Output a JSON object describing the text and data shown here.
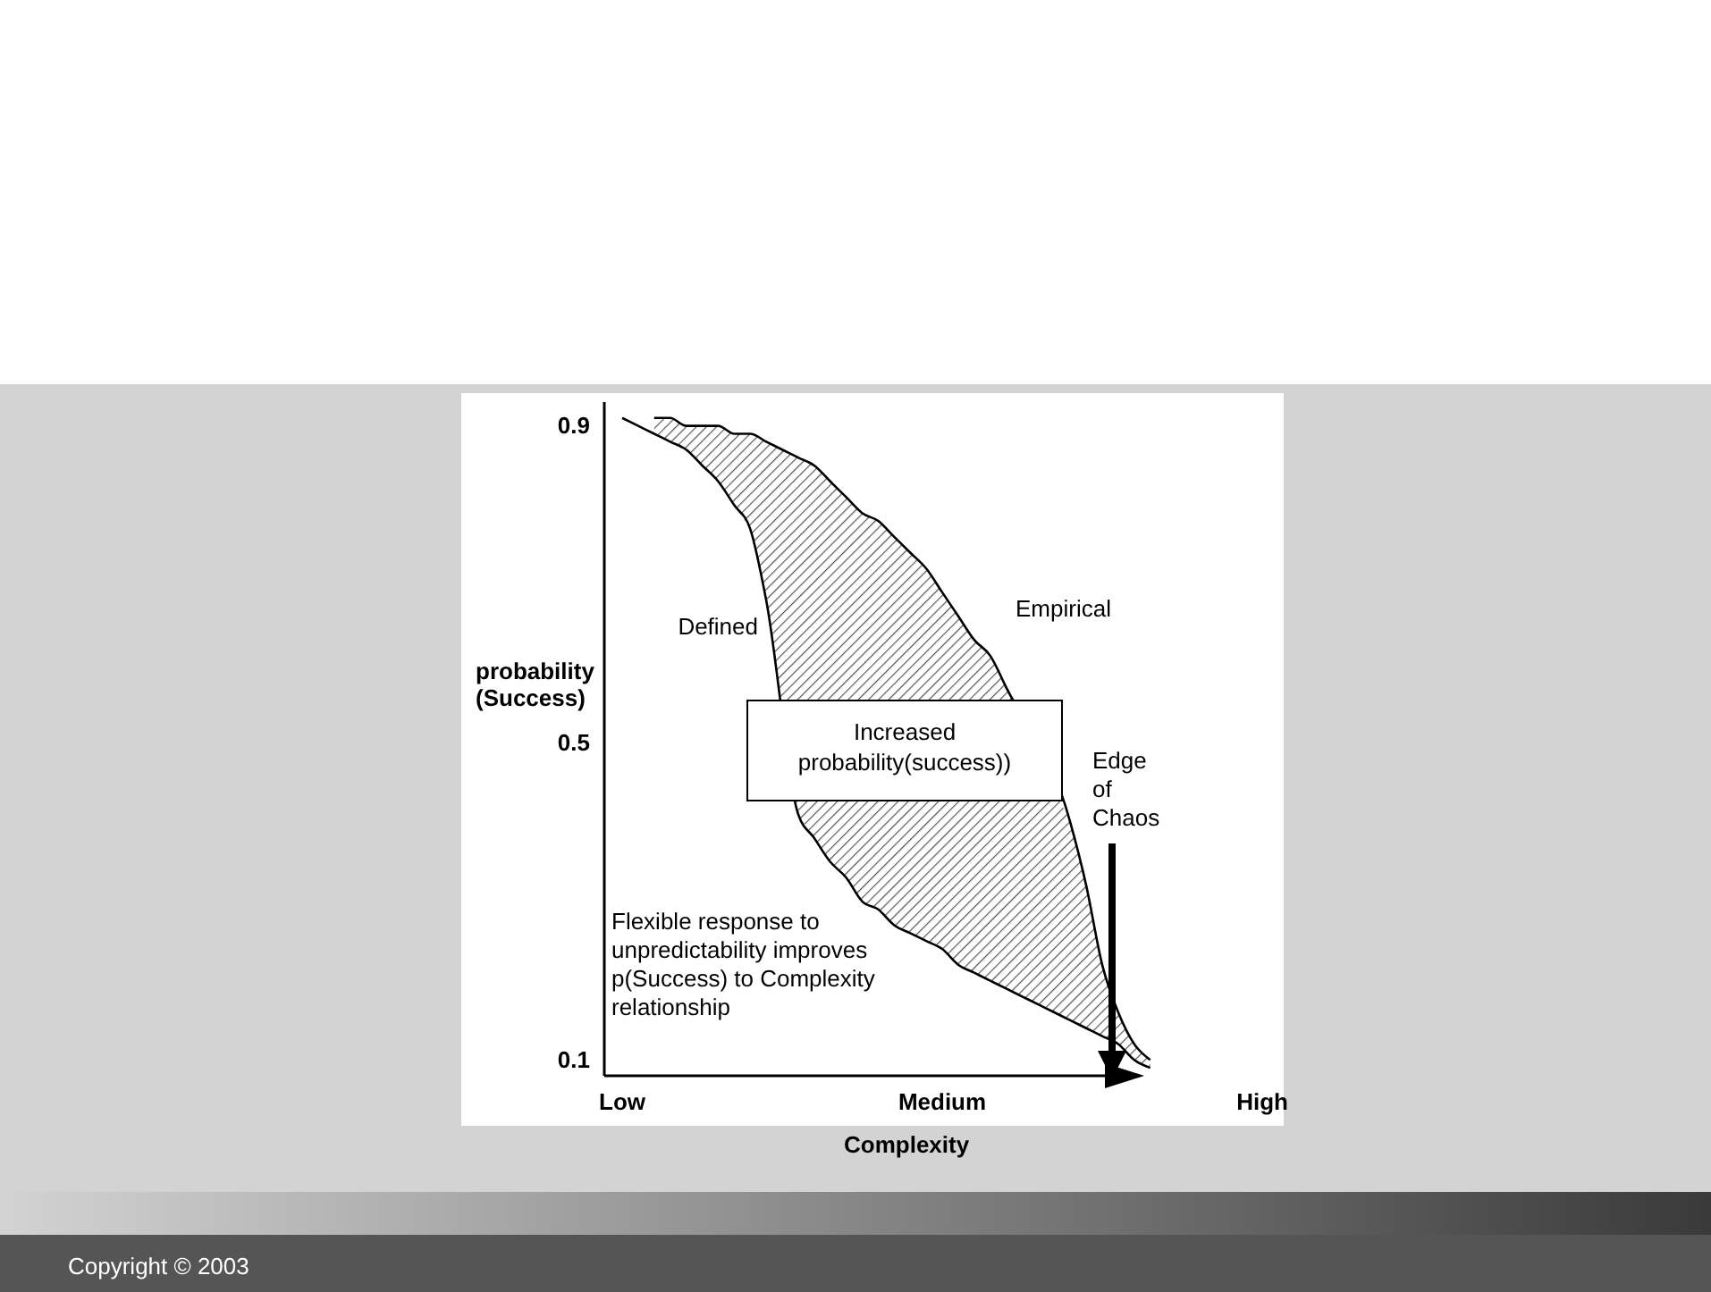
{
  "chart_data": {
    "type": "line",
    "xlabel": "Complexity",
    "ylabel": "probability (Success)",
    "categories": [
      "Low",
      null,
      null,
      null,
      null,
      null,
      null,
      null,
      null,
      null,
      null,
      null,
      null,
      null,
      null,
      null,
      null,
      null,
      null,
      null,
      "Medium",
      null,
      null,
      null,
      null,
      null,
      null,
      null,
      null,
      null,
      null,
      null,
      null,
      null,
      null,
      null,
      null,
      null,
      null,
      null,
      "High"
    ],
    "ylim": [
      0.08,
      0.93
    ],
    "yticks": [
      0.9,
      0.5,
      0.1
    ],
    "grid": false,
    "marker": "none",
    "line_style": "solid",
    "series": [
      {
        "name": "Defined",
        "color": "#000000",
        "values": [
          0.91,
          0.9,
          0.89,
          0.88,
          0.87,
          0.85,
          0.83,
          0.8,
          0.77,
          0.68,
          null,
          0.41,
          0.38,
          0.35,
          0.33,
          0.3,
          0.29,
          0.27,
          0.26,
          0.25,
          0.24,
          0.22,
          0.21,
          0.2,
          0.19,
          0.18,
          0.17,
          0.16,
          0.15,
          0.14,
          0.13,
          0.12,
          0.1,
          0.09,
          null,
          null,
          null,
          null,
          null,
          null,
          null
        ]
      },
      {
        "name": "Empirical",
        "color": "#000000",
        "values": [
          null,
          null,
          0.91,
          0.91,
          0.9,
          0.9,
          0.9,
          0.89,
          0.89,
          0.88,
          0.87,
          0.86,
          0.85,
          0.83,
          0.81,
          0.79,
          0.78,
          0.76,
          0.74,
          0.72,
          0.69,
          0.66,
          0.63,
          0.61,
          0.57,
          null,
          null,
          null,
          0.4,
          0.32,
          0.22,
          0.16,
          0.12,
          0.1,
          null,
          null,
          null,
          null,
          null,
          null,
          null
        ],
        "lower": [
          null,
          null,
          0.89,
          0.88,
          0.87,
          0.85,
          0.83,
          0.8,
          0.77,
          0.68,
          null,
          0.41,
          0.38,
          0.35,
          0.33,
          0.3,
          0.29,
          0.27,
          0.26,
          0.25,
          0.24,
          0.22,
          0.21,
          0.2,
          0.19,
          null,
          null,
          null,
          0.15,
          0.14,
          0.13,
          0.12,
          0.1,
          0.09,
          null,
          null,
          null,
          null,
          null,
          null,
          null
        ],
        "upper": [
          null,
          null,
          0.91,
          0.91,
          0.9,
          0.9,
          0.9,
          0.89,
          0.89,
          0.88,
          null,
          0.86,
          0.85,
          0.83,
          0.81,
          0.79,
          0.78,
          0.76,
          0.74,
          0.72,
          0.69,
          0.66,
          0.63,
          0.61,
          0.57,
          null,
          null,
          null,
          0.4,
          0.32,
          0.22,
          0.16,
          0.12,
          0.1,
          null,
          null,
          null,
          null,
          null,
          null,
          null
        ]
      }
    ],
    "annotations": [
      "Increased probability(success))",
      "Edge of Chaos",
      "Flexible response to unpredictability improves p(Success) to Complexity relationship",
      "Copyright © 2003"
    ]
  }
}
